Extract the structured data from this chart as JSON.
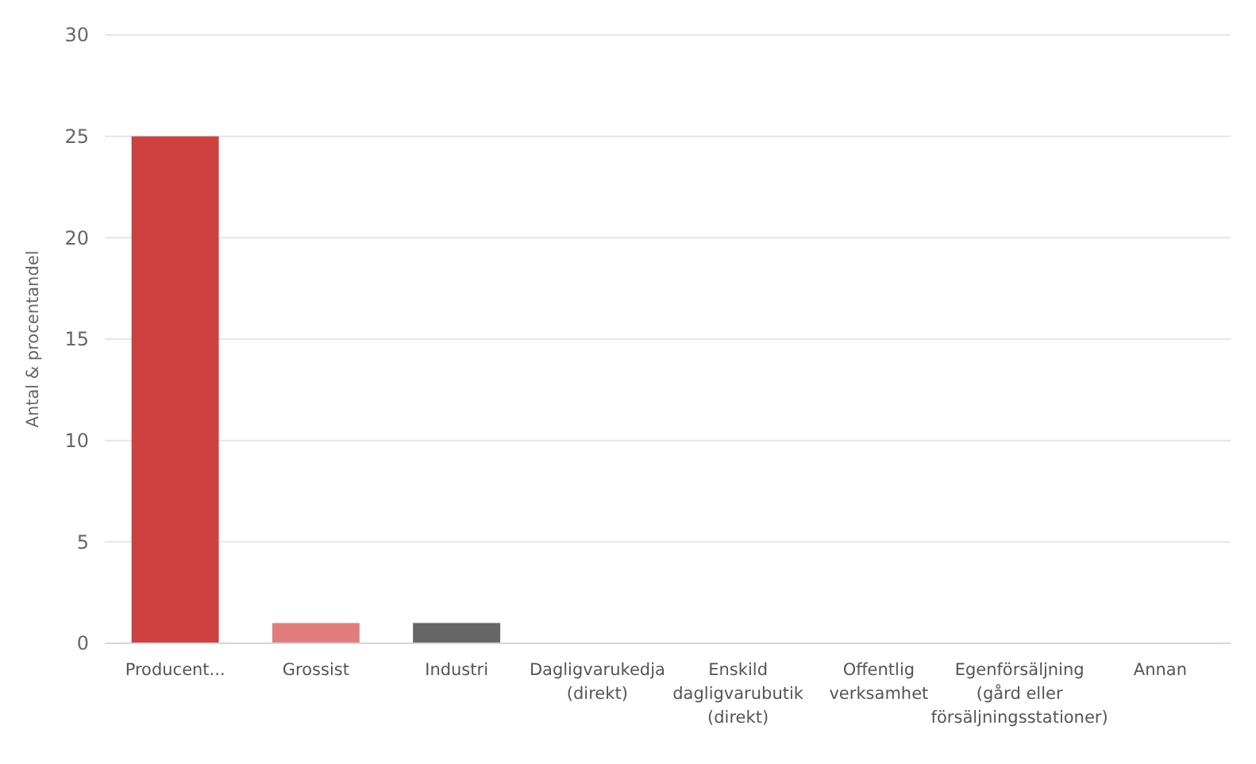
{
  "chart_data": {
    "type": "bar",
    "ylabel": "Antal & procentandel",
    "categories": [
      "Producent...",
      "Grossist",
      "Industri",
      "Dagligvarukedja (direkt)",
      "Enskild dagligvarubutik (direkt)",
      "Offentlig verksamhet",
      "Egenförsäljning (gård eller försäljningsstationer)",
      "Annan"
    ],
    "values": [
      25,
      1,
      1,
      0,
      0,
      0,
      0,
      0
    ],
    "colors": [
      "#cf4040",
      "#e07e7e",
      "#666666",
      "#cf4040",
      "#cf4040",
      "#cf4040",
      "#cf4040",
      "#cf4040"
    ],
    "ylim": [
      0,
      30
    ],
    "yticks": [
      0,
      5,
      10,
      15,
      20,
      25,
      30
    ],
    "grid": "y"
  }
}
